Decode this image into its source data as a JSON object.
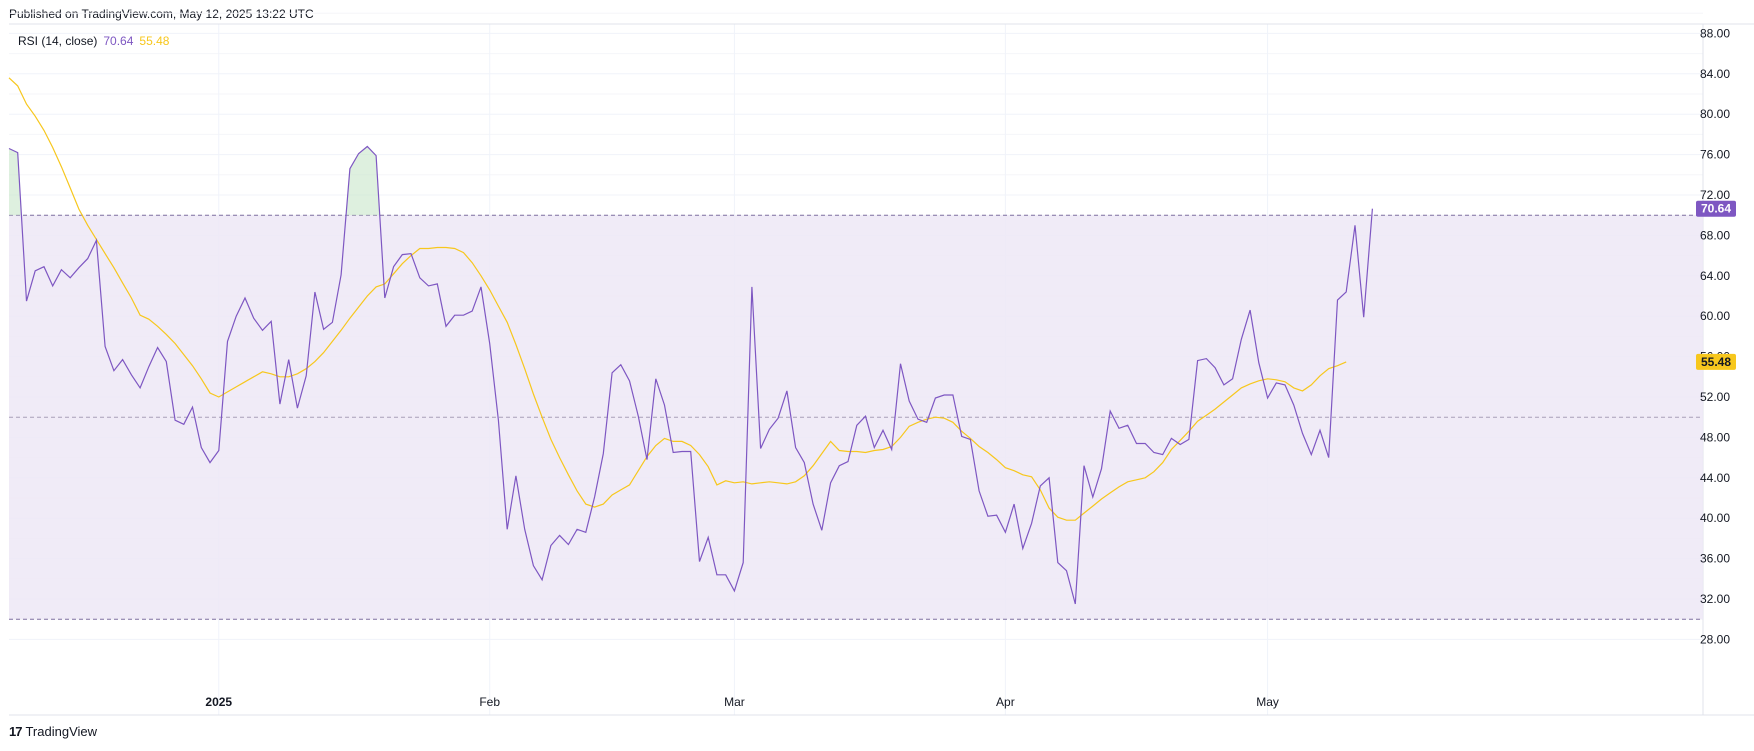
{
  "header": {
    "published": "Published on TradingView.com, May 12, 2025 13:22 UTC"
  },
  "legend": {
    "title": "RSI (14, close)",
    "rsi_value": "70.64",
    "ma_value": "55.48"
  },
  "footer": {
    "brand": "TradingView",
    "brand_mark": "17"
  },
  "colors": {
    "rsi": "#7e57c2",
    "ma": "#f7c71d",
    "band": "#ede7f6",
    "overbought_fill": "#c8e6c9"
  },
  "chart_data": {
    "type": "line",
    "title": "RSI (14, close)",
    "ylim": [
      26.0,
      90.0
    ],
    "yticks": [
      "88.00",
      "84.00",
      "80.00",
      "76.00",
      "72.00",
      "68.00",
      "64.00",
      "60.00",
      "56.00",
      "52.00",
      "48.00",
      "44.00",
      "40.00",
      "36.00",
      "32.00",
      "28.00"
    ],
    "xticks": [
      {
        "label": "2025",
        "index": 24,
        "bold": true
      },
      {
        "label": "Feb",
        "index": 55,
        "bold": false
      },
      {
        "label": "Mar",
        "index": 83,
        "bold": false
      },
      {
        "label": "Apr",
        "index": 114,
        "bold": false
      },
      {
        "label": "May",
        "index": 144,
        "bold": false
      }
    ],
    "bands": {
      "upper": 70,
      "middle": 50,
      "lower": 30
    },
    "last_values": {
      "rsi": "70.64",
      "ma": "55.48"
    },
    "grid": true,
    "series": [
      {
        "name": "RSI",
        "values": [
          76.6,
          76.2,
          61.5,
          64.5,
          64.9,
          63.0,
          64.6,
          63.8,
          64.8,
          65.7,
          67.5,
          57.0,
          54.6,
          55.7,
          54.2,
          52.9,
          55.0,
          56.9,
          55.5,
          49.7,
          49.3,
          51.0,
          47.0,
          45.5,
          46.7,
          57.5,
          60.0,
          61.8,
          59.8,
          58.6,
          59.5,
          51.3,
          55.7,
          50.9,
          54.1,
          62.4,
          58.7,
          59.4,
          64.1,
          74.6,
          76.1,
          76.8,
          75.9,
          61.8,
          64.9,
          66.1,
          66.2,
          63.8,
          63.0,
          63.2,
          59.0,
          60.1,
          60.1,
          60.5,
          62.9,
          57.3,
          49.7,
          38.9,
          44.2,
          38.9,
          35.3,
          33.9,
          37.3,
          38.3,
          37.4,
          38.9,
          38.6,
          42.1,
          46.4,
          54.4,
          55.2,
          53.6,
          50.1,
          45.8,
          53.8,
          51.2,
          46.5,
          46.6,
          46.6,
          35.7,
          38.1,
          34.4,
          34.4,
          32.8,
          35.6,
          62.9,
          46.9,
          48.8,
          49.9,
          52.6,
          47.0,
          45.5,
          41.4,
          38.8,
          43.5,
          45.2,
          45.6,
          49.2,
          50.1,
          47.0,
          48.7,
          46.8,
          55.3,
          51.6,
          49.8,
          49.5,
          51.9,
          52.2,
          52.2,
          48.1,
          47.8,
          42.7,
          40.2,
          40.3,
          38.6,
          41.4,
          37.0,
          39.5,
          43.2,
          44.0,
          35.6,
          34.8,
          31.5,
          45.2,
          42.1,
          44.9,
          50.6,
          48.9,
          49.2,
          47.4,
          47.4,
          46.5,
          46.3,
          47.9,
          47.3,
          47.8,
          55.6,
          55.8,
          54.9,
          53.2,
          53.8,
          57.7,
          60.6,
          55.4,
          51.9,
          53.4,
          53.2,
          51.2,
          48.4,
          46.3,
          48.7,
          46.0,
          61.6,
          62.4,
          69.0,
          59.9,
          70.64
        ]
      },
      {
        "name": "MA",
        "values": [
          83.6,
          82.8,
          81.0,
          79.8,
          78.4,
          76.7,
          74.8,
          72.7,
          70.6,
          69.0,
          67.6,
          66.2,
          64.8,
          63.3,
          61.8,
          60.1,
          59.7,
          59.0,
          58.2,
          57.3,
          56.2,
          55.1,
          53.8,
          52.4,
          52.0,
          52.5,
          53.0,
          53.5,
          54.0,
          54.5,
          54.3,
          54.0,
          54.0,
          54.3,
          54.8,
          55.5,
          56.4,
          57.5,
          58.6,
          59.8,
          60.9,
          62.0,
          62.9,
          63.2,
          64.2,
          65.2,
          66.0,
          66.7,
          66.7,
          66.8,
          66.8,
          66.7,
          66.3,
          65.3,
          64.0,
          62.6,
          61.0,
          59.4,
          57.2,
          54.8,
          52.3,
          50.0,
          47.8,
          46.0,
          44.3,
          42.7,
          41.4,
          41.1,
          41.4,
          42.3,
          42.8,
          43.3,
          44.7,
          46.1,
          47.2,
          47.9,
          47.6,
          47.6,
          47.2,
          46.3,
          45.1,
          43.3,
          43.7,
          43.5,
          43.6,
          43.4,
          43.5,
          43.6,
          43.5,
          43.4,
          43.6,
          44.2,
          45.2,
          46.4,
          47.6,
          46.7,
          46.6,
          46.6,
          46.5,
          46.7,
          46.8,
          47.1,
          48.0,
          49.1,
          49.5,
          49.8,
          50.0,
          49.9,
          49.5,
          48.6,
          47.9,
          47.1,
          46.5,
          45.8,
          45.0,
          44.7,
          44.3,
          44.1,
          42.8,
          41.0,
          40.1,
          39.8,
          39.8,
          40.5,
          41.2,
          41.9,
          42.5,
          43.1,
          43.6,
          43.8,
          44.0,
          44.6,
          45.5,
          46.8,
          47.7,
          48.6,
          49.6,
          50.2,
          50.8,
          51.5,
          52.2,
          52.9,
          53.3,
          53.6,
          53.8,
          53.7,
          53.5,
          52.9,
          52.6,
          53.2,
          54.1,
          54.8,
          55.1,
          55.48
        ]
      }
    ]
  }
}
